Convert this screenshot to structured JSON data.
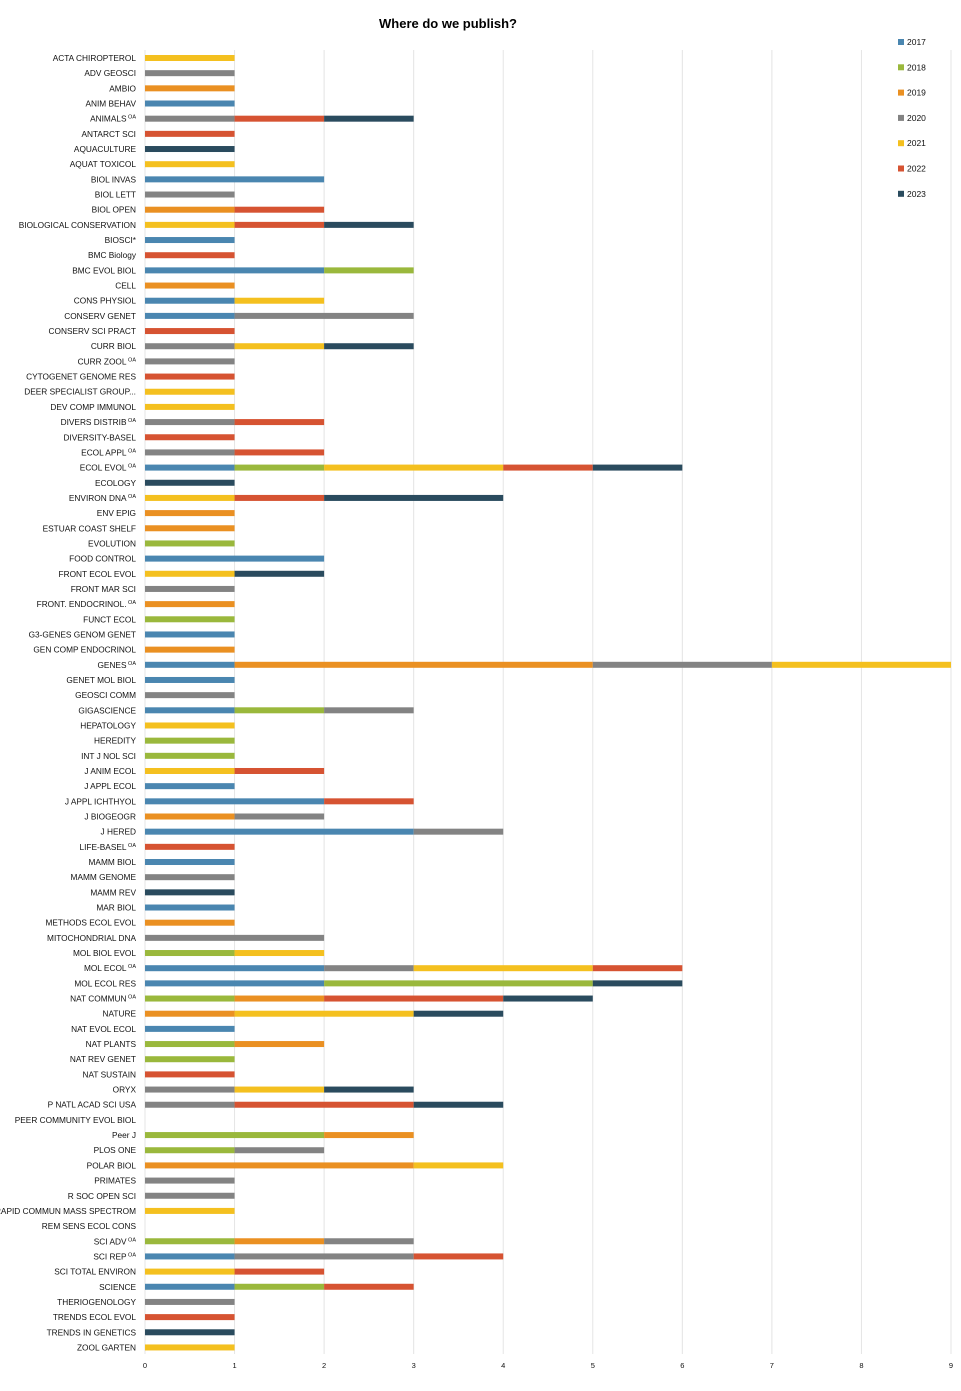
{
  "chart_data": {
    "type": "bar",
    "orientation": "horizontal",
    "stacked": true,
    "title": "Where do we publish?",
    "xlim": [
      0,
      9
    ],
    "xticks": [
      "0",
      "1",
      "2",
      "3",
      "4",
      "5",
      "6",
      "7",
      "8",
      "9"
    ],
    "grid": true,
    "legend_position": "top-right",
    "colors": [
      "#4A86B0",
      "#9AB83C",
      "#EA9022",
      "#838383",
      "#F4C01F",
      "#D65332",
      "#2A4B5E"
    ],
    "categories": [
      {
        "label": "ACTA CHIROPTEROL"
      },
      {
        "label": "ADV GEOSCI"
      },
      {
        "label": "AMBIO"
      },
      {
        "label": "ANIM BEHAV"
      },
      {
        "label": "ANIMALS",
        "sup": "OA"
      },
      {
        "label": "ANTARCT SCI"
      },
      {
        "label": "AQUACULTURE"
      },
      {
        "label": "AQUAT TOXICOL"
      },
      {
        "label": "BIOL INVAS"
      },
      {
        "label": "BIOL LETT"
      },
      {
        "label": "BIOL OPEN"
      },
      {
        "label": "BIOLOGICAL CONSERVATION"
      },
      {
        "label": "BIOSCI*"
      },
      {
        "label": "BMC Biology"
      },
      {
        "label": "BMC EVOL BIOL"
      },
      {
        "label": "CELL"
      },
      {
        "label": "CONS PHYSIOL"
      },
      {
        "label": "CONSERV GENET"
      },
      {
        "label": "CONSERV SCI PRACT"
      },
      {
        "label": "CURR BIOL"
      },
      {
        "label": "CURR ZOOL",
        "sup": "OA"
      },
      {
        "label": "CYTOGENET GENOME RES"
      },
      {
        "label": "DEER SPECIALIST GROUP..."
      },
      {
        "label": "DEV COMP IMMUNOL"
      },
      {
        "label": "DIVERS DISTRIB",
        "sup": "OA"
      },
      {
        "label": "DIVERSITY-BASEL"
      },
      {
        "label": "ECOL APPL",
        "sup": "OA"
      },
      {
        "label": "ECOL EVOL",
        "sup": "OA"
      },
      {
        "label": "ECOLOGY"
      },
      {
        "label": "ENVIRON DNA",
        "sup": "OA"
      },
      {
        "label": "ENV EPIG"
      },
      {
        "label": "ESTUAR COAST SHELF"
      },
      {
        "label": "EVOLUTION"
      },
      {
        "label": "FOOD CONTROL"
      },
      {
        "label": "FRONT ECOL EVOL"
      },
      {
        "label": "FRONT MAR SCI"
      },
      {
        "label": "FRONT. ENDOCRINOL.",
        "sup": "OA"
      },
      {
        "label": "FUNCT ECOL"
      },
      {
        "label": "G3-GENES GENOM GENET"
      },
      {
        "label": "GEN COMP ENDOCRINOL"
      },
      {
        "label": "GENES",
        "sup": "OA"
      },
      {
        "label": "GENET MOL BIOL"
      },
      {
        "label": "GEOSCI COMM"
      },
      {
        "label": "GIGASCIENCE"
      },
      {
        "label": "HEPATOLOGY"
      },
      {
        "label": "HEREDITY"
      },
      {
        "label": "INT J NOL SCI"
      },
      {
        "label": "J ANIM ECOL"
      },
      {
        "label": "J APPL ECOL"
      },
      {
        "label": "J APPL ICHTHYOL"
      },
      {
        "label": "J BIOGEOGR"
      },
      {
        "label": "J HERED"
      },
      {
        "label": "LIFE-BASEL",
        "sup": "OA"
      },
      {
        "label": "MAMM BIOL"
      },
      {
        "label": "MAMM GENOME"
      },
      {
        "label": "MAMM REV"
      },
      {
        "label": "MAR BIOL"
      },
      {
        "label": "METHODS ECOL EVOL"
      },
      {
        "label": "MITOCHONDRIAL DNA"
      },
      {
        "label": "MOL BIOL EVOL"
      },
      {
        "label": "MOL ECOL",
        "sup": "OA"
      },
      {
        "label": "MOL ECOL RES"
      },
      {
        "label": "NAT COMMUN",
        "sup": "OA"
      },
      {
        "label": "NATURE"
      },
      {
        "label": "NAT EVOL ECOL"
      },
      {
        "label": "NAT PLANTS"
      },
      {
        "label": "NAT REV GENET"
      },
      {
        "label": "NAT SUSTAIN"
      },
      {
        "label": "ORYX"
      },
      {
        "label": "P NATL ACAD SCI USA"
      },
      {
        "label": "PEER COMMUNITY EVOL BIOL"
      },
      {
        "label": "Peer J"
      },
      {
        "label": "PLOS ONE"
      },
      {
        "label": "POLAR BIOL"
      },
      {
        "label": "PRIMATES"
      },
      {
        "label": "R SOC OPEN SCI"
      },
      {
        "label": "RAPID COMMUN MASS SPECTROM"
      },
      {
        "label": "REM SENS ECOL CONS"
      },
      {
        "label": "SCI ADV",
        "sup": "OA"
      },
      {
        "label": "SCI REP",
        "sup": "OA"
      },
      {
        "label": "SCI TOTAL ENVIRON"
      },
      {
        "label": "SCIENCE"
      },
      {
        "label": "THERIOGENOLOGY"
      },
      {
        "label": "TRENDS ECOL EVOL"
      },
      {
        "label": "TRENDS IN GENETICS"
      },
      {
        "label": "ZOOL GARTEN"
      }
    ],
    "series": [
      {
        "name": "2017",
        "values": [
          0,
          0,
          0,
          1,
          0,
          0,
          0,
          0,
          2,
          0,
          0,
          0,
          1,
          0,
          2,
          0,
          1,
          1,
          0,
          0,
          0,
          0,
          0,
          0,
          0,
          0,
          0,
          1,
          0,
          0,
          0,
          0,
          0,
          2,
          0,
          0,
          0,
          0,
          1,
          0,
          1,
          1,
          0,
          1,
          0,
          0,
          0,
          0,
          1,
          2,
          0,
          3,
          0,
          1,
          0,
          0,
          1,
          0,
          0,
          0,
          2,
          2,
          0,
          0,
          1,
          0,
          0,
          0,
          0,
          0,
          0,
          0,
          0,
          0,
          0,
          0,
          0,
          0,
          0,
          1,
          0,
          1,
          0,
          0,
          0,
          0
        ]
      },
      {
        "name": "2018",
        "values": [
          0,
          0,
          0,
          0,
          0,
          0,
          0,
          0,
          0,
          0,
          0,
          0,
          0,
          0,
          1,
          0,
          0,
          0,
          0,
          0,
          0,
          0,
          0,
          0,
          0,
          0,
          0,
          1,
          0,
          0,
          0,
          0,
          1,
          0,
          0,
          0,
          0,
          1,
          0,
          0,
          0,
          0,
          0,
          1,
          0,
          1,
          1,
          0,
          0,
          0,
          0,
          0,
          0,
          0,
          0,
          0,
          0,
          0,
          0,
          1,
          0,
          3,
          1,
          0,
          0,
          1,
          1,
          0,
          0,
          0,
          0,
          2,
          1,
          0,
          0,
          0,
          0,
          0,
          1,
          0,
          0,
          1,
          0,
          0,
          0,
          0
        ]
      },
      {
        "name": "2019",
        "values": [
          0,
          0,
          1,
          0,
          0,
          0,
          0,
          0,
          0,
          0,
          1,
          0,
          0,
          0,
          0,
          1,
          0,
          0,
          0,
          0,
          0,
          0,
          0,
          0,
          0,
          0,
          0,
          0,
          0,
          0,
          1,
          1,
          0,
          0,
          0,
          0,
          1,
          0,
          0,
          1,
          4,
          0,
          0,
          0,
          0,
          0,
          0,
          0,
          0,
          0,
          1,
          0,
          0,
          0,
          0,
          0,
          0,
          1,
          0,
          0,
          0,
          0,
          1,
          1,
          0,
          1,
          0,
          0,
          0,
          0,
          0,
          1,
          0,
          3,
          0,
          0,
          0,
          0,
          1,
          0,
          0,
          0,
          0,
          0,
          0,
          0
        ]
      },
      {
        "name": "2020",
        "values": [
          0,
          1,
          0,
          0,
          1,
          0,
          0,
          0,
          0,
          1,
          0,
          0,
          0,
          0,
          0,
          0,
          0,
          2,
          0,
          1,
          1,
          0,
          0,
          0,
          1,
          0,
          1,
          0,
          0,
          0,
          0,
          0,
          0,
          0,
          0,
          1,
          0,
          0,
          0,
          0,
          2,
          0,
          1,
          1,
          0,
          0,
          0,
          0,
          0,
          0,
          1,
          1,
          0,
          0,
          1,
          0,
          0,
          0,
          2,
          0,
          1,
          0,
          0,
          0,
          0,
          0,
          0,
          0,
          1,
          1,
          0,
          0,
          1,
          0,
          1,
          1,
          0,
          0,
          1,
          2,
          0,
          0,
          1,
          0,
          0,
          0
        ]
      },
      {
        "name": "2021",
        "values": [
          1,
          0,
          0,
          0,
          0,
          0,
          0,
          1,
          0,
          0,
          0,
          1,
          0,
          0,
          0,
          0,
          1,
          0,
          0,
          1,
          0,
          0,
          1,
          1,
          0,
          0,
          0,
          2,
          0,
          1,
          0,
          0,
          0,
          0,
          1,
          0,
          0,
          0,
          0,
          0,
          2,
          0,
          0,
          0,
          1,
          0,
          0,
          1,
          0,
          0,
          0,
          0,
          0,
          0,
          0,
          0,
          0,
          0,
          0,
          1,
          2,
          0,
          0,
          2,
          0,
          0,
          0,
          0,
          1,
          0,
          0,
          0,
          0,
          1,
          0,
          0,
          1,
          0,
          0,
          0,
          1,
          0,
          0,
          0,
          0,
          1
        ]
      },
      {
        "name": "2022",
        "values": [
          0,
          0,
          0,
          0,
          1,
          1,
          0,
          0,
          0,
          0,
          1,
          1,
          0,
          1,
          0,
          0,
          0,
          0,
          1,
          0,
          0,
          1,
          0,
          0,
          1,
          1,
          1,
          1,
          0,
          1,
          0,
          0,
          0,
          0,
          0,
          0,
          0,
          0,
          0,
          0,
          0,
          0,
          0,
          0,
          0,
          0,
          0,
          1,
          0,
          1,
          0,
          0,
          1,
          0,
          0,
          0,
          0,
          0,
          0,
          0,
          1,
          0,
          2,
          0,
          0,
          0,
          0,
          1,
          0,
          2,
          0,
          0,
          0,
          0,
          0,
          0,
          0,
          0,
          0,
          1,
          1,
          1,
          0,
          1,
          0,
          0
        ]
      },
      {
        "name": "2023",
        "values": [
          0,
          0,
          0,
          0,
          1,
          0,
          1,
          0,
          0,
          0,
          0,
          1,
          0,
          0,
          0,
          0,
          0,
          0,
          0,
          1,
          0,
          0,
          0,
          0,
          0,
          0,
          0,
          1,
          1,
          2,
          0,
          0,
          0,
          0,
          1,
          0,
          0,
          0,
          0,
          0,
          0,
          0,
          0,
          0,
          0,
          0,
          0,
          0,
          0,
          0,
          0,
          0,
          0,
          0,
          0,
          1,
          0,
          0,
          0,
          0,
          0,
          1,
          1,
          1,
          0,
          0,
          0,
          0,
          1,
          1,
          0,
          0,
          0,
          0,
          0,
          0,
          0,
          0,
          0,
          0,
          0,
          0,
          0,
          0,
          1,
          0
        ]
      }
    ]
  }
}
